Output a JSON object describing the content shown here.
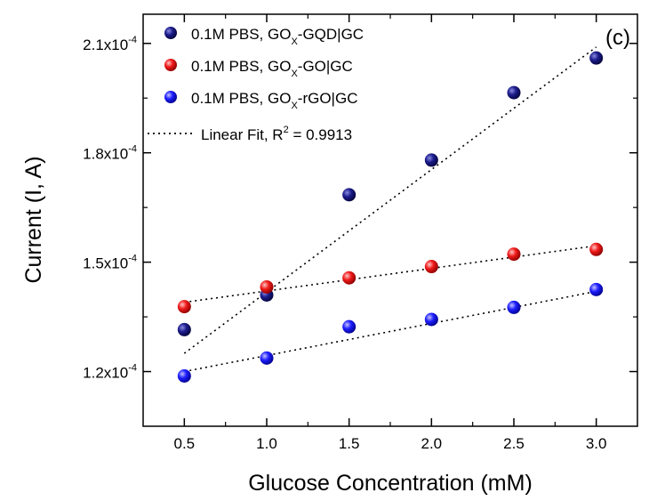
{
  "chart_data": {
    "type": "scatter",
    "panel_label": "(c)",
    "xlabel": "Glucose Concentration (mM)",
    "ylabel": "Current (I, A)",
    "xlim": [
      0.25,
      3.25
    ],
    "ylim": [
      0.000105,
      0.000218
    ],
    "x_ticks": [
      {
        "value": 0.5,
        "label": "0.5"
      },
      {
        "value": 1.0,
        "label": "1.0"
      },
      {
        "value": 1.5,
        "label": "1.5"
      },
      {
        "value": 2.0,
        "label": "2.0"
      },
      {
        "value": 2.5,
        "label": "2.5"
      },
      {
        "value": 3.0,
        "label": "3.0"
      }
    ],
    "y_ticks": [
      {
        "value": 0.00012,
        "mantissa": "1.2x10",
        "exponent": "-4"
      },
      {
        "value": 0.00015,
        "mantissa": "1.5x10",
        "exponent": "-4"
      },
      {
        "value": 0.00018,
        "mantissa": "1.8x10",
        "exponent": "-4"
      },
      {
        "value": 0.00021,
        "mantissa": "2.1x10",
        "exponent": "-4"
      }
    ],
    "grid": false,
    "legend_position": "top-left",
    "series": [
      {
        "legend_prefix": "0.1M PBS,  GO",
        "legend_sub": "X",
        "legend_suffix": "-GQD|GC",
        "color": "#0a0a6e",
        "x": [
          0.5,
          1.0,
          1.5,
          2.0,
          2.5,
          3.0
        ],
        "y": [
          0.0001315,
          0.000141,
          0.0001685,
          0.000178,
          0.0001965,
          0.000206
        ],
        "fit": [
          0.000125,
          0.000209
        ]
      },
      {
        "legend_prefix": "0.1M PBS,  GO",
        "legend_sub": "X",
        "legend_suffix": "-GO|GC",
        "color": "#e8141e",
        "x": [
          0.5,
          1.0,
          1.5,
          2.0,
          2.5,
          3.0
        ],
        "y": [
          0.0001378,
          0.0001432,
          0.0001457,
          0.0001488,
          0.0001522,
          0.0001535
        ],
        "fit": [
          0.000139,
          0.0001545
        ]
      },
      {
        "legend_prefix": "0.1M PBS,  GO",
        "legend_sub": "X",
        "legend_suffix": "-rGO|GC",
        "color": "#1414e6",
        "x": [
          0.5,
          1.0,
          1.5,
          2.0,
          2.5,
          3.0
        ],
        "y": [
          0.0001188,
          0.0001237,
          0.0001323,
          0.0001343,
          0.0001376,
          0.0001425
        ],
        "fit": [
          0.00012,
          0.000142
        ]
      }
    ],
    "fit_legend": {
      "prefix": "Linear Fit, R",
      "sup": "2",
      "suffix": " = 0.9913"
    }
  }
}
